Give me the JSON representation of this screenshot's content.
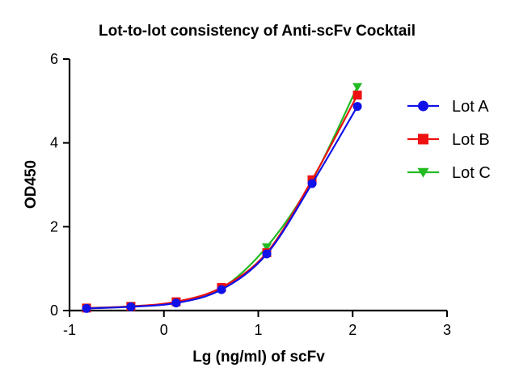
{
  "chart_data": {
    "type": "line",
    "title": "Lot-to-lot consistency of Anti-scFv Cocktail",
    "xlabel": "Lg (ng/ml) of scFv",
    "ylabel": "OD450",
    "xlim": [
      -1,
      3
    ],
    "ylim": [
      0,
      6
    ],
    "x_ticks": [
      "-1",
      "0",
      "1",
      "2",
      "3"
    ],
    "y_ticks": [
      "0",
      "2",
      "4",
      "6"
    ],
    "grid": false,
    "legend_position": "right",
    "x": [
      -0.82,
      -0.35,
      0.13,
      0.61,
      1.09,
      1.57,
      2.05
    ],
    "series": [
      {
        "name": "Lot A",
        "marker": "circle",
        "color": "#1010e8",
        "values": [
          0.05,
          0.09,
          0.18,
          0.5,
          1.35,
          3.03,
          4.87
        ]
      },
      {
        "name": "Lot B",
        "marker": "square",
        "color": "#ee1111",
        "values": [
          0.06,
          0.1,
          0.21,
          0.55,
          1.38,
          3.12,
          5.14
        ]
      },
      {
        "name": "Lot C",
        "marker": "triangle-down",
        "color": "#22bb22",
        "values": [
          0.06,
          0.1,
          0.2,
          0.53,
          1.52,
          3.1,
          5.34
        ]
      }
    ]
  }
}
